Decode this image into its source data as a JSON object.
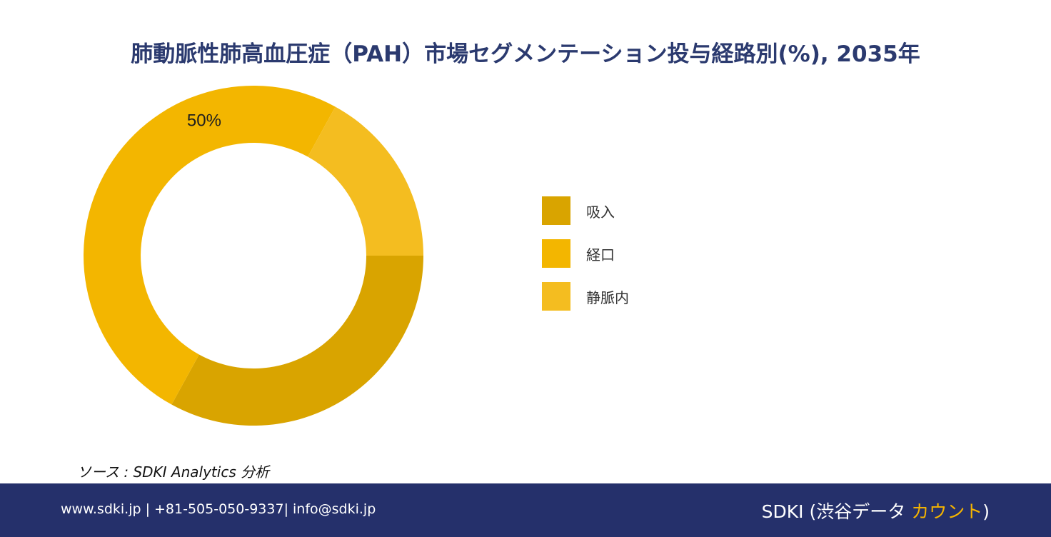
{
  "title": "肺動脈性肺高血圧症（PAH）市場セグメンテーション投与経路別(%), 2035年",
  "source": "ソース : SDKI Analytics 分析",
  "footer": {
    "contact": "www.sdki.jp | +81-505-050-9337| info@sdki.jp",
    "brand_prefix": "SDKI (渋谷データ ",
    "brand_accent": "カウント",
    "brand_suffix": ")"
  },
  "chart_data": {
    "type": "pie",
    "variant": "donut",
    "categories": [
      "吸入",
      "経口",
      "静脈内"
    ],
    "values": [
      33,
      50,
      17
    ],
    "colors": [
      "#d9a400",
      "#f3b600",
      "#f4bd20"
    ],
    "data_labels": [
      "",
      "50%",
      ""
    ],
    "start": "3 o'clock, clockwise",
    "legend_position": "right"
  }
}
